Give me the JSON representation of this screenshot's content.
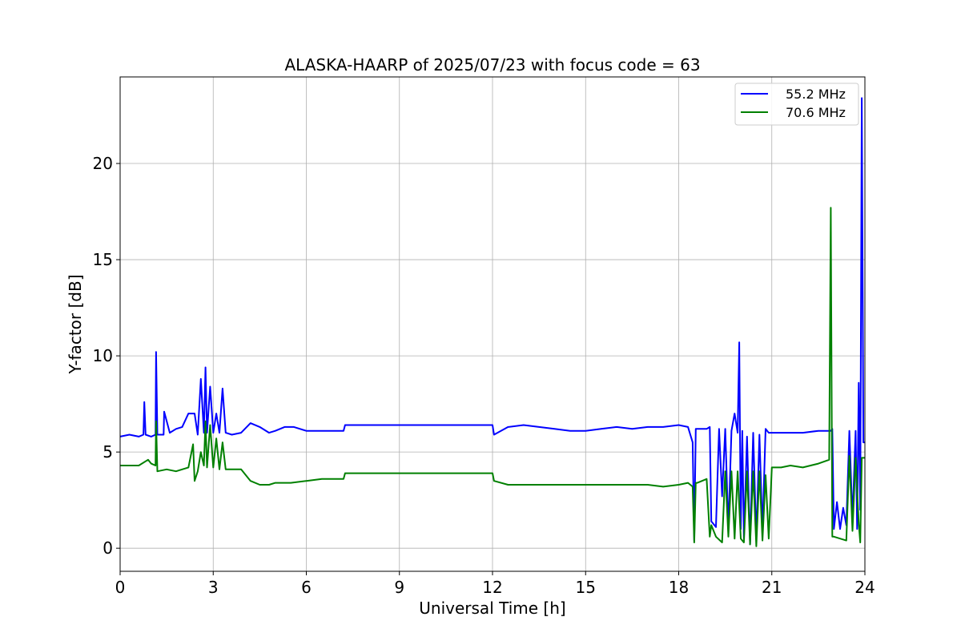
{
  "chart_data": {
    "type": "line",
    "title": "ALASKA-HAARP of 2025/07/23 with focus code = 63",
    "xlabel": "Universal Time [h]",
    "ylabel": "Y-factor [dB]",
    "xlim": [
      0,
      24
    ],
    "ylim": [
      -1.2,
      24.5
    ],
    "xticks": [
      0,
      3,
      6,
      9,
      12,
      15,
      18,
      21,
      24
    ],
    "yticks": [
      0,
      5,
      10,
      15,
      20
    ],
    "grid": true,
    "legend_position": "top-right",
    "series": [
      {
        "name": "55.2 MHz",
        "color": "#0000ff",
        "x": [
          0.0,
          0.3,
          0.6,
          0.75,
          0.78,
          0.82,
          1.0,
          1.14,
          1.16,
          1.2,
          1.4,
          1.42,
          1.6,
          1.8,
          2.0,
          2.2,
          2.4,
          2.5,
          2.6,
          2.7,
          2.75,
          2.8,
          2.9,
          3.0,
          3.1,
          3.2,
          3.3,
          3.4,
          3.6,
          3.9,
          4.2,
          4.5,
          4.8,
          5.0,
          5.3,
          5.6,
          6.0,
          6.5,
          7.0,
          7.2,
          7.25,
          12.0,
          12.05,
          12.5,
          13.0,
          13.5,
          14.0,
          14.5,
          15.0,
          15.5,
          16.0,
          16.5,
          17.0,
          17.5,
          18.0,
          18.3,
          18.45,
          18.5,
          18.55,
          18.6,
          18.9,
          19.0,
          19.05,
          19.2,
          19.3,
          19.4,
          19.5,
          19.6,
          19.7,
          19.8,
          19.9,
          19.95,
          20.0,
          20.05,
          20.1,
          20.2,
          20.3,
          20.4,
          20.5,
          20.6,
          20.7,
          20.8,
          20.9,
          21.0,
          21.5,
          22.0,
          22.5,
          22.9,
          22.95,
          23.0,
          23.1,
          23.2,
          23.3,
          23.4,
          23.5,
          23.6,
          23.7,
          23.75,
          23.8,
          23.85,
          23.9,
          23.95,
          24.0
        ],
        "y": [
          5.8,
          5.9,
          5.8,
          5.9,
          7.6,
          5.9,
          5.8,
          5.9,
          10.2,
          5.9,
          5.9,
          7.1,
          6.0,
          6.2,
          6.3,
          7.0,
          7.0,
          5.9,
          8.8,
          6.0,
          9.4,
          6.0,
          8.4,
          6.0,
          7.0,
          6.0,
          8.3,
          6.0,
          5.9,
          6.0,
          6.5,
          6.3,
          6.0,
          6.1,
          6.3,
          6.3,
          6.1,
          6.1,
          6.1,
          6.1,
          6.4,
          6.4,
          5.9,
          6.3,
          6.4,
          6.3,
          6.2,
          6.1,
          6.1,
          6.2,
          6.3,
          6.2,
          6.3,
          6.3,
          6.4,
          6.3,
          5.5,
          0.4,
          6.2,
          6.2,
          6.2,
          6.3,
          1.4,
          1.1,
          6.2,
          2.7,
          6.2,
          1.0,
          6.1,
          7.0,
          6.0,
          10.7,
          1.0,
          6.1,
          0.5,
          5.8,
          0.2,
          6.0,
          0.5,
          5.9,
          0.9,
          6.2,
          6.0,
          6.0,
          6.0,
          6.0,
          6.1,
          6.1,
          6.2,
          1.0,
          2.4,
          1.0,
          2.1,
          1.2,
          6.1,
          1.5,
          6.1,
          1.0,
          8.6,
          2.0,
          23.4,
          5.5,
          5.5
        ]
      },
      {
        "name": "70.6 MHz",
        "color": "#008000",
        "x": [
          0.0,
          0.3,
          0.6,
          0.9,
          1.0,
          1.14,
          1.16,
          1.2,
          1.5,
          1.8,
          2.0,
          2.2,
          2.35,
          2.4,
          2.5,
          2.6,
          2.7,
          2.75,
          2.8,
          2.9,
          3.0,
          3.1,
          3.2,
          3.3,
          3.4,
          3.6,
          3.9,
          4.2,
          4.5,
          4.8,
          5.0,
          5.5,
          6.0,
          6.5,
          7.0,
          7.2,
          7.25,
          12.0,
          12.05,
          12.5,
          13.0,
          14.0,
          15.0,
          16.0,
          17.0,
          17.5,
          18.0,
          18.3,
          18.45,
          18.5,
          18.55,
          18.6,
          18.9,
          19.0,
          19.05,
          19.2,
          19.4,
          19.5,
          19.6,
          19.7,
          19.8,
          19.9,
          20.0,
          20.1,
          20.2,
          20.3,
          20.4,
          20.5,
          20.6,
          20.7,
          20.8,
          20.9,
          21.0,
          21.3,
          21.6,
          22.0,
          22.5,
          22.85,
          22.9,
          22.95,
          23.0,
          23.2,
          23.4,
          23.5,
          23.6,
          23.7,
          23.8,
          23.85,
          23.9,
          24.0
        ],
        "y": [
          4.3,
          4.3,
          4.3,
          4.6,
          4.4,
          4.3,
          6.6,
          4.0,
          4.1,
          4.0,
          4.1,
          4.2,
          5.4,
          3.5,
          4.0,
          5.0,
          4.3,
          6.6,
          4.2,
          6.4,
          4.2,
          5.7,
          4.1,
          5.5,
          4.1,
          4.1,
          4.1,
          3.5,
          3.3,
          3.3,
          3.4,
          3.4,
          3.5,
          3.6,
          3.6,
          3.6,
          3.9,
          3.9,
          3.5,
          3.3,
          3.3,
          3.3,
          3.3,
          3.3,
          3.3,
          3.2,
          3.3,
          3.4,
          3.2,
          0.3,
          3.4,
          3.4,
          3.6,
          0.6,
          1.2,
          0.6,
          0.3,
          4.0,
          0.6,
          4.0,
          0.5,
          4.0,
          0.5,
          0.3,
          4.0,
          0.2,
          4.0,
          0.1,
          4.0,
          0.4,
          3.8,
          0.5,
          4.2,
          4.2,
          4.3,
          4.2,
          4.4,
          4.6,
          17.7,
          0.6,
          0.6,
          0.5,
          0.4,
          4.8,
          0.9,
          4.7,
          1.3,
          0.3,
          4.7,
          4.7
        ]
      }
    ]
  }
}
